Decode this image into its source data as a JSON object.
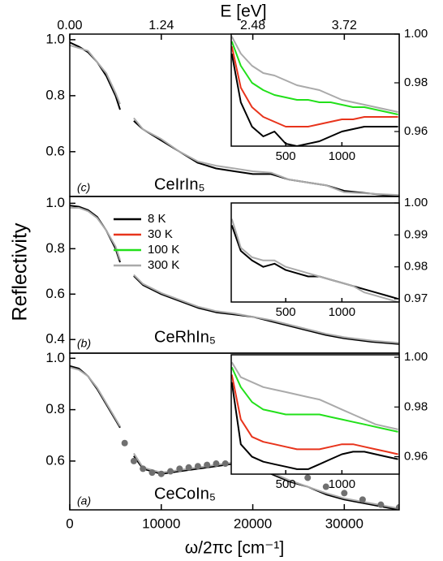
{
  "figure": {
    "xlabel": "ω/2πc [cm⁻¹]",
    "ylabel": "Reflectivity",
    "top_axis": {
      "label": "E [eV]",
      "xlim": [
        0,
        4.4635
      ],
      "ticks": [
        {
          "value": 0,
          "label": "0.00"
        },
        1.24,
        2.48,
        3.72
      ]
    }
  },
  "chart_data": [
    {
      "type": "line",
      "panel_label": "(c)",
      "material": "CeIrIn₅",
      "xlim": [
        0,
        36000
      ],
      "ylim": [
        0.44,
        1.02
      ],
      "yticks": [
        0.6,
        0.8,
        {
          "value": 1,
          "label": "1.0"
        }
      ],
      "x": [
        0,
        1000,
        2000,
        3000,
        4000,
        5000,
        5500,
        6000,
        7000,
        8000,
        10000,
        12000,
        14000,
        16000,
        18000,
        20000,
        22000,
        24000,
        26000,
        28000,
        30000,
        33000,
        36000
      ],
      "series": [
        {
          "name": "8 K",
          "color": "#000000",
          "values": [
            0.99,
            0.975,
            0.955,
            0.92,
            0.87,
            0.8,
            0.75,
            null,
            0.71,
            0.68,
            0.64,
            0.6,
            0.56,
            0.54,
            0.53,
            0.52,
            0.52,
            0.5,
            0.49,
            0.48,
            0.46,
            0.45,
            0.44
          ]
        },
        {
          "name": "300 K",
          "color": "#aaaaaa",
          "values": [
            0.98,
            0.97,
            0.96,
            0.92,
            0.88,
            0.81,
            0.77,
            null,
            0.72,
            0.68,
            0.645,
            0.6,
            0.565,
            0.55,
            0.54,
            0.53,
            0.525,
            0.5,
            0.49,
            0.48,
            0.455,
            0.45,
            0.445
          ]
        }
      ]
    },
    {
      "type": "line",
      "xlim": [
        15,
        1510
      ],
      "ylim": [
        0.954,
        1.0
      ],
      "xticks": [
        500,
        1000
      ],
      "yticks": [
        0.96,
        0.98,
        {
          "value": 1,
          "label": "1.00"
        }
      ],
      "x": [
        20,
        100,
        200,
        300,
        400,
        500,
        600,
        700,
        800,
        900,
        1000,
        1100,
        1200,
        1300,
        1400,
        1500
      ],
      "series": [
        {
          "name": "8 K",
          "color": "#000000",
          "values": [
            0.992,
            0.972,
            0.962,
            0.958,
            0.96,
            0.955,
            0.954,
            0.955,
            0.956,
            0.958,
            0.96,
            0.961,
            0.962,
            0.962,
            0.962,
            0.962
          ]
        },
        {
          "name": "30 K",
          "color": "#e8341c",
          "values": [
            0.995,
            0.978,
            0.97,
            0.966,
            0.964,
            0.962,
            0.962,
            0.962,
            0.963,
            0.964,
            0.965,
            0.965,
            0.966,
            0.966,
            0.966,
            0.966
          ]
        },
        {
          "name": "100 K",
          "color": "#22e01a",
          "values": [
            0.997,
            0.987,
            0.98,
            0.977,
            0.975,
            0.974,
            0.973,
            0.973,
            0.972,
            0.972,
            0.971,
            0.97,
            0.97,
            0.969,
            0.968,
            0.967
          ]
        },
        {
          "name": "300 K",
          "color": "#aaaaaa",
          "values": [
            0.999,
            0.992,
            0.987,
            0.984,
            0.983,
            0.981,
            0.979,
            0.978,
            0.977,
            0.975,
            0.973,
            0.972,
            0.971,
            0.97,
            0.969,
            0.968
          ]
        }
      ]
    },
    {
      "type": "line",
      "panel_label": "(b)",
      "material": "CeRhIn₅",
      "xlim": [
        0,
        36000
      ],
      "ylim": [
        0.34,
        1.03
      ],
      "yticks": [
        0.4,
        0.6,
        0.8,
        {
          "value": 1,
          "label": "1.0"
        }
      ],
      "x": [
        0,
        1000,
        2000,
        3000,
        4000,
        5000,
        5500,
        6000,
        7000,
        8000,
        10000,
        12000,
        14000,
        16000,
        18000,
        20000,
        22000,
        24000,
        26000,
        28000,
        30000,
        33000,
        36000
      ],
      "series": [
        {
          "name": "8 K",
          "color": "#000000",
          "values": [
            0.99,
            0.985,
            0.97,
            0.94,
            0.88,
            0.8,
            0.74,
            null,
            0.68,
            0.64,
            0.6,
            0.57,
            0.54,
            0.52,
            0.51,
            0.5,
            0.48,
            0.46,
            0.44,
            0.42,
            0.405,
            0.39,
            0.38
          ]
        },
        {
          "name": "300 K",
          "color": "#aaaaaa",
          "values": [
            0.98,
            0.98,
            0.965,
            0.935,
            0.88,
            0.81,
            0.75,
            null,
            0.685,
            0.645,
            0.605,
            0.575,
            0.545,
            0.525,
            0.515,
            0.5,
            0.485,
            0.465,
            0.445,
            0.425,
            0.41,
            0.395,
            0.385
          ]
        }
      ]
    },
    {
      "type": "line",
      "xlim": [
        15,
        1510
      ],
      "ylim": [
        0.969,
        1.0
      ],
      "xticks": [
        500,
        1000
      ],
      "yticks": [
        0.97,
        0.98,
        0.99,
        {
          "value": 1,
          "label": "1.00"
        }
      ],
      "x": [
        20,
        100,
        200,
        300,
        400,
        500,
        600,
        700,
        800,
        900,
        1000,
        1100,
        1200,
        1300,
        1400,
        1500
      ],
      "series": [
        {
          "name": "8 K",
          "color": "#000000",
          "values": [
            0.993,
            0.985,
            0.982,
            0.98,
            0.981,
            0.979,
            0.978,
            0.977,
            0.977,
            0.976,
            0.975,
            0.974,
            0.973,
            0.972,
            0.971,
            0.97
          ]
        },
        {
          "name": "300 K",
          "color": "#aaaaaa",
          "values": [
            0.995,
            0.986,
            0.983,
            0.982,
            0.982,
            0.98,
            0.979,
            0.978,
            0.977,
            0.976,
            0.975,
            0.974,
            0.972,
            0.971,
            0.97,
            0.969
          ]
        }
      ]
    },
    {
      "type": "line",
      "panel_label": "(a)",
      "material": "CeCoIn₅",
      "xlim": [
        0,
        36000
      ],
      "ylim": [
        0.41,
        1.02
      ],
      "xticks": [
        0,
        10000,
        20000,
        30000
      ],
      "yticks": [
        0.6,
        0.8,
        {
          "value": 1,
          "label": "1.0"
        }
      ],
      "x": [
        0,
        1000,
        2000,
        3000,
        4000,
        5000,
        5500,
        6000,
        7000,
        8000,
        10000,
        12000,
        14000,
        16000,
        18000,
        20000,
        22000,
        24000,
        26000,
        28000,
        30000,
        33000,
        36000
      ],
      "series": [
        {
          "name": "8 K",
          "color": "#000000",
          "values": [
            0.97,
            0.96,
            0.93,
            0.88,
            0.82,
            0.76,
            0.73,
            null,
            0.62,
            0.57,
            0.55,
            0.56,
            0.57,
            0.58,
            0.59,
            0.575,
            0.55,
            0.52,
            0.5,
            0.47,
            0.45,
            0.43,
            0.41
          ]
        },
        {
          "name": "300 K",
          "color": "#aaaaaa",
          "values": [
            0.965,
            0.955,
            0.93,
            0.885,
            0.825,
            0.765,
            0.735,
            null,
            0.63,
            0.575,
            0.555,
            0.565,
            0.575,
            0.585,
            0.595,
            0.58,
            0.555,
            0.525,
            0.5,
            0.475,
            0.455,
            0.435,
            0.415
          ]
        },
        {
          "marker": "circle",
          "color": "#707070",
          "x": [
            6000,
            7000,
            8000,
            9000,
            10000,
            11000,
            12000,
            13000,
            14000,
            15000,
            16000,
            17000,
            18000,
            20000,
            22000,
            24000,
            26000,
            28000,
            30000,
            32000,
            34000,
            36000
          ],
          "values": [
            0.67,
            0.6,
            0.57,
            0.555,
            0.55,
            0.56,
            0.57,
            0.575,
            0.58,
            0.585,
            0.59,
            0.59,
            0.59,
            0.585,
            0.575,
            0.56,
            0.535,
            0.5,
            0.475,
            0.45,
            0.43,
            0.42
          ]
        }
      ]
    },
    {
      "type": "line",
      "xlim": [
        15,
        1510
      ],
      "ylim": [
        0.953,
        1.001
      ],
      "xticks": [
        500,
        1000
      ],
      "yticks": [
        0.96,
        0.98,
        {
          "value": 1,
          "label": "1.00"
        }
      ],
      "x": [
        20,
        100,
        200,
        300,
        400,
        500,
        600,
        700,
        800,
        900,
        1000,
        1100,
        1200,
        1300,
        1400,
        1500
      ],
      "series": [
        {
          "name": "8 K",
          "color": "#000000",
          "values": [
            0.99,
            0.965,
            0.96,
            0.958,
            0.957,
            0.956,
            0.955,
            0.955,
            0.957,
            0.959,
            0.961,
            0.962,
            0.962,
            0.961,
            0.96,
            0.959
          ]
        },
        {
          "name": "30 K",
          "color": "#e8341c",
          "values": [
            0.993,
            0.975,
            0.968,
            0.966,
            0.965,
            0.964,
            0.963,
            0.963,
            0.963,
            0.964,
            0.965,
            0.965,
            0.964,
            0.963,
            0.962,
            0.961
          ]
        },
        {
          "name": "100 K",
          "color": "#22e01a",
          "values": [
            0.996,
            0.988,
            0.982,
            0.979,
            0.978,
            0.977,
            0.977,
            0.977,
            0.977,
            0.976,
            0.975,
            0.974,
            0.973,
            0.972,
            0.971,
            0.97
          ]
        },
        {
          "name": "300 K",
          "color": "#aaaaaa",
          "values": [
            0.998,
            0.992,
            0.99,
            0.988,
            0.987,
            0.986,
            0.985,
            0.984,
            0.983,
            0.981,
            0.979,
            0.977,
            0.975,
            0.973,
            0.972,
            0.971
          ]
        }
      ]
    }
  ]
}
